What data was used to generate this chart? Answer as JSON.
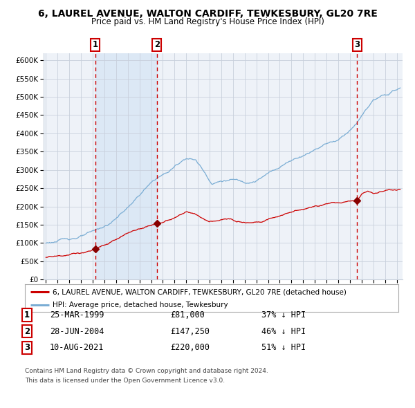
{
  "title": "6, LAUREL AVENUE, WALTON CARDIFF, TEWKESBURY, GL20 7RE",
  "subtitle": "Price paid vs. HM Land Registry's House Price Index (HPI)",
  "bg_color": "#ffffff",
  "plot_bg_color": "#eef2f8",
  "grid_color": "#c8d0dc",
  "hpi_color": "#7aadd4",
  "price_color": "#cc0000",
  "sale_marker_color": "#880000",
  "vline_color": "#cc0000",
  "highlight_bg": "#dce8f5",
  "transactions": [
    {
      "label": "1",
      "date": 1999.23,
      "price": 81000,
      "hpi_pct": 37,
      "date_str": "25-MAR-1999"
    },
    {
      "label": "2",
      "date": 2004.49,
      "price": 147250,
      "hpi_pct": 46,
      "date_str": "28-JUN-2004"
    },
    {
      "label": "3",
      "date": 2021.61,
      "price": 220000,
      "hpi_pct": 51,
      "date_str": "10-AUG-2021"
    }
  ],
  "legend_line1": "6, LAUREL AVENUE, WALTON CARDIFF, TEWKESBURY, GL20 7RE (detached house)",
  "legend_line2": "HPI: Average price, detached house, Tewkesbury",
  "footer1": "Contains HM Land Registry data © Crown copyright and database right 2024.",
  "footer2": "This data is licensed under the Open Government Licence v3.0.",
  "ylim": [
    0,
    620000
  ],
  "yticks": [
    0,
    50000,
    100000,
    150000,
    200000,
    250000,
    300000,
    350000,
    400000,
    450000,
    500000,
    550000,
    600000
  ],
  "xlim_start": 1994.8,
  "xlim_end": 2025.5
}
